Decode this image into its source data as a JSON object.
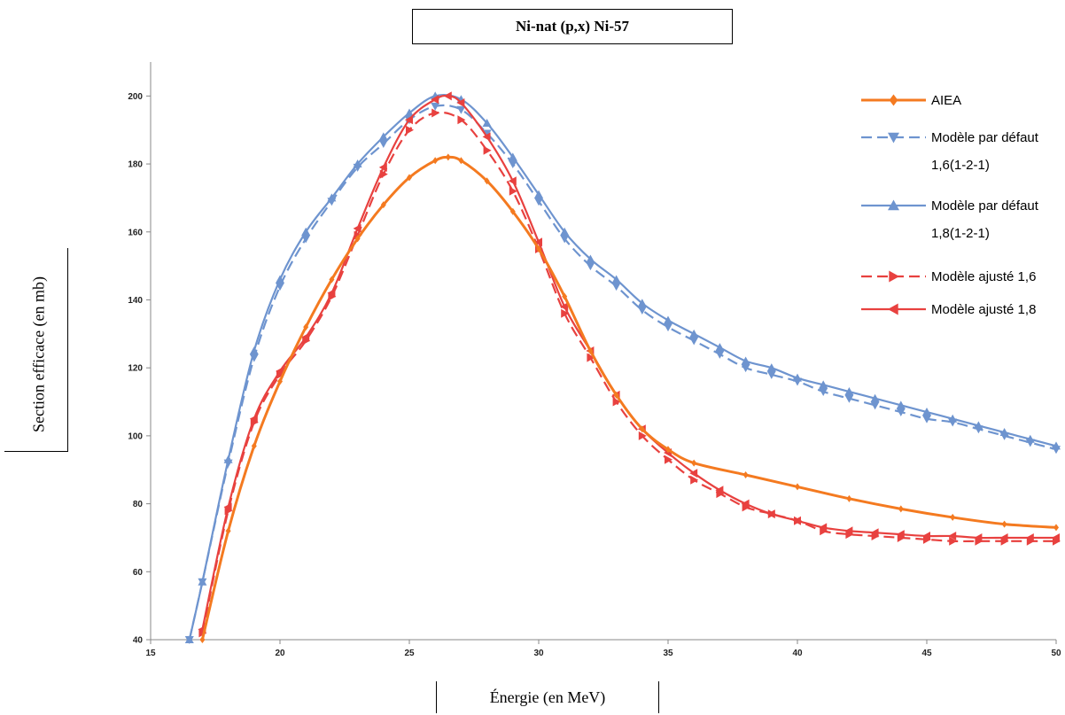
{
  "chart_data": {
    "type": "line",
    "title": "Ni-nat (p,x) Ni-57",
    "xlabel": "Énergie (en MeV)",
    "ylabel": "Section efficace (en mb)",
    "xlim": [
      15,
      50
    ],
    "ylim": [
      40,
      210
    ],
    "xticks": [
      15,
      20,
      25,
      30,
      35,
      40,
      45,
      50
    ],
    "yticks": [
      40,
      60,
      80,
      100,
      120,
      140,
      160,
      180,
      200
    ],
    "grid": false,
    "legend_position": "top-right",
    "series": [
      {
        "name": "AIEA",
        "color": "#f47a20",
        "dash": "solid",
        "marker": "diamond",
        "x": [
          17,
          18,
          19,
          20,
          21,
          22,
          23,
          24,
          25,
          26,
          26.5,
          27,
          28,
          29,
          30,
          31,
          32,
          33,
          34,
          35,
          36,
          38,
          40,
          42,
          44,
          46,
          48,
          50
        ],
        "y": [
          40,
          72,
          97,
          116,
          132,
          146,
          158,
          168,
          176,
          181,
          182,
          181,
          175,
          166,
          155,
          141,
          125,
          112,
          102,
          96,
          92,
          88.5,
          85,
          81.5,
          78.5,
          76,
          74,
          73
        ]
      },
      {
        "name": "Modèle par défaut\n1,6(1-2-1)",
        "color": "#6e94cf",
        "dash": "dashed",
        "marker": "triangle-down",
        "x": [
          16.5,
          17,
          18,
          19,
          20,
          21,
          22,
          23,
          24,
          25,
          26,
          27,
          28,
          29,
          30,
          31,
          32,
          33,
          34,
          35,
          36,
          37,
          38,
          39,
          40,
          41,
          42,
          43,
          44,
          45,
          46,
          47,
          48,
          49,
          50
        ],
        "y": [
          40,
          57,
          92,
          123,
          144,
          158,
          169,
          179,
          186,
          193,
          197,
          196,
          189,
          180,
          169,
          158,
          150,
          144,
          137,
          132,
          128,
          124,
          120,
          118,
          116,
          113,
          111,
          109,
          107,
          105,
          104,
          102,
          100,
          98,
          96
        ]
      },
      {
        "name": "Modèle par défaut\n1,8(1-2-1)",
        "color": "#6e94cf",
        "dash": "solid",
        "marker": "triangle-up",
        "x": [
          16.5,
          17,
          18,
          19,
          20,
          21,
          22,
          23,
          24,
          25,
          26,
          27,
          28,
          29,
          30,
          31,
          32,
          33,
          34,
          35,
          36,
          37,
          38,
          39,
          40,
          41,
          42,
          43,
          44,
          45,
          46,
          47,
          48,
          49,
          50
        ],
        "y": [
          40,
          57,
          93,
          125,
          146,
          160,
          170,
          180,
          188,
          195,
          200,
          199,
          192,
          182,
          171,
          160,
          152,
          146,
          139,
          134,
          130,
          126,
          122,
          120,
          117,
          115,
          113,
          111,
          109,
          107,
          105,
          103,
          101,
          99,
          97
        ]
      },
      {
        "name": "Modèle ajusté 1,6",
        "color": "#e8413f",
        "dash": "dashed",
        "marker": "triangle-right",
        "x": [
          17,
          18,
          19,
          20,
          21,
          22,
          23,
          24,
          25,
          26,
          27,
          28,
          29,
          30,
          31,
          32,
          33,
          34,
          35,
          36,
          37,
          38,
          39,
          40,
          41,
          42,
          43,
          44,
          45,
          46,
          47,
          48,
          49,
          50
        ],
        "y": [
          42,
          78,
          104,
          118,
          128,
          141,
          159,
          177,
          190,
          195,
          193,
          184,
          172,
          155,
          136,
          123,
          110,
          100,
          93,
          87,
          83,
          79,
          77,
          75,
          72,
          71,
          70.5,
          70,
          69.5,
          69,
          69,
          69,
          69,
          69
        ]
      },
      {
        "name": "Modèle ajusté 1,8",
        "color": "#e8413f",
        "dash": "solid",
        "marker": "triangle-left",
        "x": [
          17,
          18,
          19,
          20,
          21,
          22,
          23,
          24,
          25,
          26,
          26.5,
          27,
          28,
          29,
          30,
          31,
          32,
          33,
          34,
          35,
          36,
          37,
          38,
          39,
          40,
          41,
          42,
          43,
          44,
          45,
          46,
          47,
          48,
          49,
          50
        ],
        "y": [
          43,
          79,
          105,
          119,
          129,
          142,
          161,
          179,
          193,
          199,
          200,
          198,
          188,
          175,
          157,
          138,
          125,
          112,
          102,
          95,
          89,
          84,
          80,
          77,
          75,
          73,
          72,
          71.5,
          71,
          70.5,
          70.5,
          70,
          70,
          70,
          70
        ]
      }
    ]
  }
}
